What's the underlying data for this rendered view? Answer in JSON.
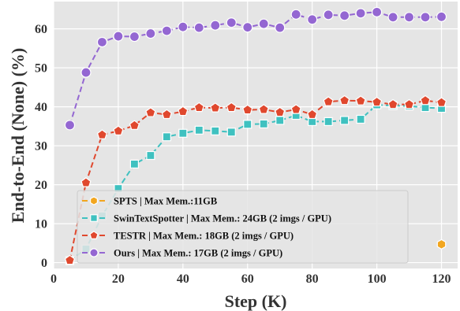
{
  "chart_data": {
    "type": "line",
    "xlabel": "Step (K)",
    "ylabel": "End-to-End (None) (%)",
    "xlim": [
      0,
      125
    ],
    "ylim": [
      -1.5,
      67
    ],
    "xticks": [
      0,
      20,
      40,
      60,
      80,
      100,
      120
    ],
    "yticks": [
      0,
      10,
      20,
      30,
      40,
      50,
      60
    ],
    "grid": true,
    "legend_position": "lower-center",
    "series": [
      {
        "name": "SPTS | Max Mem.:11GB",
        "color": "#f2a61f",
        "marker": "hexagon",
        "x": [
          120
        ],
        "y": [
          4.7
        ]
      },
      {
        "name": "SwinTextSpotter | Max Mem.: 24GB (2 imgs / GPU)",
        "color": "#3fc1c0",
        "marker": "square",
        "x": [
          5,
          10,
          15,
          20,
          25,
          30,
          35,
          40,
          45,
          50,
          55,
          60,
          65,
          70,
          75,
          80,
          85,
          90,
          95,
          100,
          105,
          110,
          115,
          120
        ],
        "y": [
          0.5,
          3.5,
          12.0,
          19.0,
          25.3,
          27.5,
          32.3,
          33.2,
          34.0,
          33.8,
          33.5,
          35.5,
          35.6,
          36.5,
          37.8,
          36.2,
          36.2,
          36.5,
          36.8,
          40.5,
          40.3,
          40.2,
          39.8,
          39.6
        ]
      },
      {
        "name": "TESTR | Max Mem.: 18GB (2 imgs / GPU)",
        "color": "#e0482e",
        "marker": "pentagon",
        "x": [
          5,
          10,
          15,
          20,
          25,
          30,
          35,
          40,
          45,
          50,
          55,
          60,
          65,
          70,
          75,
          80,
          85,
          90,
          95,
          100,
          105,
          110,
          115,
          120
        ],
        "y": [
          0.6,
          20.5,
          32.8,
          33.8,
          35.2,
          38.5,
          38.0,
          38.8,
          39.8,
          39.7,
          39.8,
          39.2,
          39.3,
          38.6,
          39.3,
          38.0,
          41.3,
          41.6,
          41.5,
          41.2,
          40.6,
          40.6,
          41.6,
          41.1
        ]
      },
      {
        "name": "Ours | Max Mem.: 17GB (2 imgs / GPU)",
        "color": "#9467d2",
        "marker": "circle",
        "x": [
          5,
          10,
          15,
          20,
          25,
          30,
          35,
          40,
          45,
          50,
          55,
          60,
          65,
          70,
          75,
          80,
          85,
          90,
          95,
          100,
          105,
          110,
          115,
          120
        ],
        "y": [
          35.3,
          48.8,
          56.6,
          58.1,
          58.0,
          58.8,
          59.5,
          60.5,
          60.3,
          60.9,
          61.6,
          60.4,
          61.3,
          60.3,
          63.7,
          62.4,
          63.6,
          63.4,
          64.0,
          64.3,
          63.0,
          63.0,
          63.0,
          63.1
        ]
      }
    ]
  }
}
